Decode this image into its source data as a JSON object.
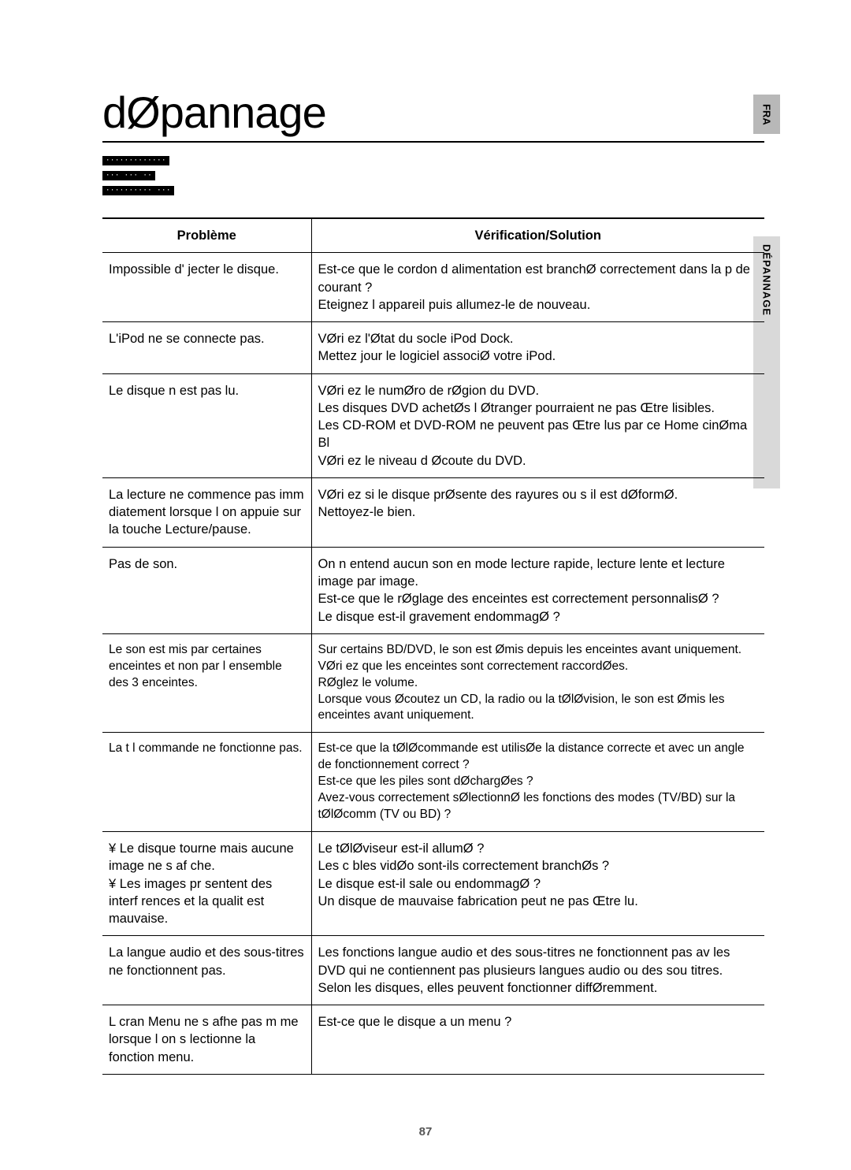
{
  "title": "dØpannage",
  "side_tab_top": "FRA",
  "side_tab_label": "DÉPANNAGE",
  "header_lines": [
    "·············",
    "··· ··· ··",
    "·········· ···"
  ],
  "table": {
    "header_problem": "Problème",
    "header_solution": "Vérification/Solution",
    "rows": [
      {
        "problem": "Impossible d' jecter le disque.",
        "solution": "Est-ce que le cordon d alimentation est branchØ correctement dans la p de courant ?\nEteignez l appareil puis allumez-le de nouveau."
      },
      {
        "problem": "L'iPod ne se connecte pas.",
        "solution": "VØri ez l'Øtat du socle iPod Dock.\nMettez   jour le logiciel associØ   votre iPod."
      },
      {
        "problem": "Le disque n est pas lu.",
        "solution": "VØri ez le numØro de rØgion du DVD.\nLes disques DVD achetØs   l Øtranger pourraient ne pas Œtre lisibles.\nLes CD-ROM et DVD-ROM ne peuvent pas Œtre lus par ce Home cinØma Bl\nVØri ez le niveau d Øcoute du DVD."
      },
      {
        "problem": "La lecture ne commence pas imm diatement lorsque l on appuie sur la touche Lecture/pause.",
        "solution": "VØri ez si le disque prØsente des rayures ou s il est dØformØ.\nNettoyez-le bien."
      },
      {
        "problem": "Pas de son.",
        "solution": "On n entend aucun son en mode lecture rapide, lecture lente et lecture image par image.\nEst-ce que le rØglage des enceintes est correctement personnalisØ ?\nLe disque est-il gravement endommagØ ?"
      },
      {
        "problem": "Le son est  mis par certaines enceintes et non par l ensemble des 3 enceintes.",
        "solution": "Sur certains BD/DVD, le son est Ømis depuis les enceintes avant uniquement.\nVØri ez que les enceintes sont correctement raccordØes.\nRØglez le volume.\nLorsque vous Øcoutez un CD, la radio ou la tØlØvision, le son est Ømis les enceintes avant uniquement."
      },
      {
        "problem": "La t l commande ne fonctionne pas.",
        "solution": "Est-ce que la tØlØcommande est utilisØe   la distance correcte et avec un angle de fonctionnement correct ?\nEst-ce que les piles sont dØchargØes ?\nAvez-vous correctement sØlectionnØ les fonctions des modes (TV/BD) sur la tØlØcomm (TV ou BD) ?"
      },
      {
        "problem": "¥ Le disque tourne mais aucune image ne s af che.\n¥ Les images pr sentent des interf rences et la qualit  est mauvaise.",
        "solution": "Le tØlØviseur est-il allumØ ?\nLes c bles vidØo sont-ils correctement branchØs ?\nLe disque est-il sale ou endommagØ ?\nUn disque de mauvaise fabrication peut ne pas Œtre lu."
      },
      {
        "problem": "La langue audio et des sous-titres ne fonctionnent pas.",
        "solution": "Les fonctions langue audio et des sous-titres ne fonctionnent pas av les DVD qui ne contiennent pas plusieurs langues audio ou des sou titres. Selon les disques, elles peuvent fonctionner diffØremment."
      },
      {
        "problem": "L  cran Menu ne s afhe pas m me lorsque l on s lectionne la fonction menu.",
        "solution": "Est-ce que le disque a un menu ?"
      }
    ]
  },
  "page_number": "87"
}
